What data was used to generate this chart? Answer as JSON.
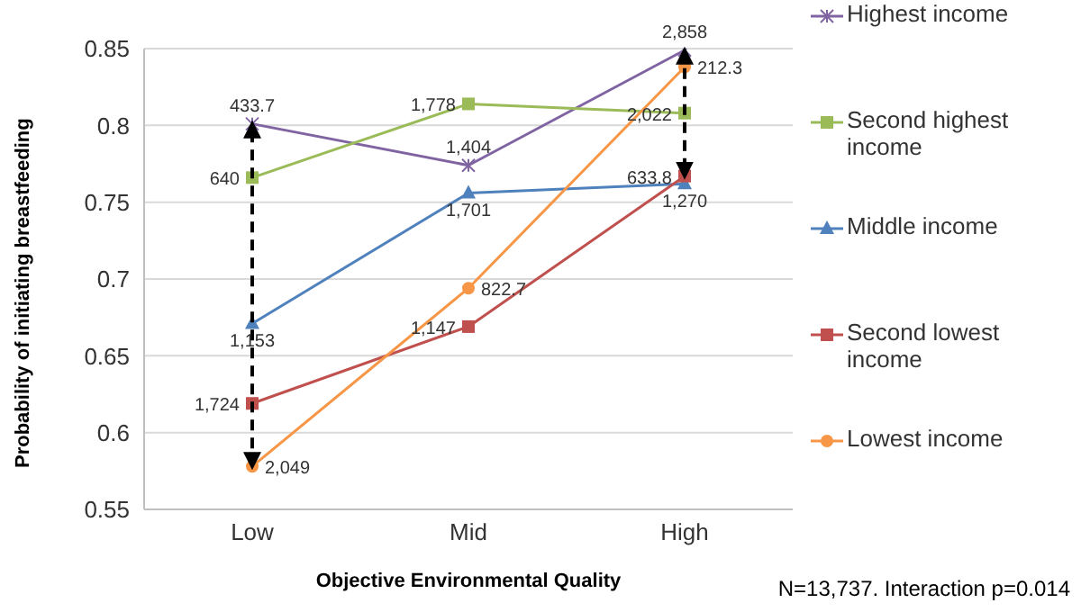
{
  "chart_data": {
    "type": "line",
    "xlabel": "Objective Environmental Quality",
    "ylabel": "Probability of initiating breastfeeding",
    "categories": [
      "Low",
      "Mid",
      "High"
    ],
    "series": [
      {
        "name": "Highest income",
        "color": "#8064a2",
        "marker": "cross",
        "values": [
          0.801,
          0.774,
          0.849
        ]
      },
      {
        "name": "Second highest income",
        "color": "#9bbb59",
        "marker": "square",
        "values": [
          0.766,
          0.814,
          0.808
        ]
      },
      {
        "name": "Middle income",
        "color": "#4f81bd",
        "marker": "triangle",
        "values": [
          0.671,
          0.756,
          0.762
        ]
      },
      {
        "name": "Second lowest income",
        "color": "#c0504d",
        "marker": "square",
        "values": [
          0.619,
          0.669,
          0.767
        ]
      },
      {
        "name": "Lowest income",
        "color": "#f79646",
        "marker": "circle",
        "values": [
          0.578,
          0.694,
          0.838
        ]
      }
    ],
    "ylim": [
      0.55,
      0.85
    ],
    "yticks": [
      0.55,
      0.6,
      0.65,
      0.7,
      0.75,
      0.8,
      0.85
    ],
    "grid": "y",
    "legend": "right",
    "annotations": [
      {
        "text": "433.7",
        "x": "Low",
        "y": 0.801
      },
      {
        "text": "1,404",
        "x": "Mid",
        "y": 0.774
      },
      {
        "text": "2,858",
        "x": "High",
        "y": 0.849
      },
      {
        "text": "640",
        "x": "Low",
        "y": 0.766
      },
      {
        "text": "1,778",
        "x": "Mid",
        "y": 0.814
      },
      {
        "text": "2,022",
        "x": "High",
        "y": 0.808
      },
      {
        "text": "1,153",
        "x": "Low",
        "y": 0.671
      },
      {
        "text": "1,701",
        "x": "Mid",
        "y": 0.756
      },
      {
        "text": "1,270",
        "x": "High",
        "y": 0.762
      },
      {
        "text": "1,724",
        "x": "Low",
        "y": 0.619
      },
      {
        "text": "1,147",
        "x": "Mid",
        "y": 0.669
      },
      {
        "text": "633.8",
        "x": "High",
        "y": 0.767
      },
      {
        "text": "2,049",
        "x": "Low",
        "y": 0.578
      },
      {
        "text": "822.7",
        "x": "Mid",
        "y": 0.694
      },
      {
        "text": "212.3",
        "x": "High",
        "y": 0.838
      },
      "N=13,737. Interaction p=0.014"
    ]
  }
}
